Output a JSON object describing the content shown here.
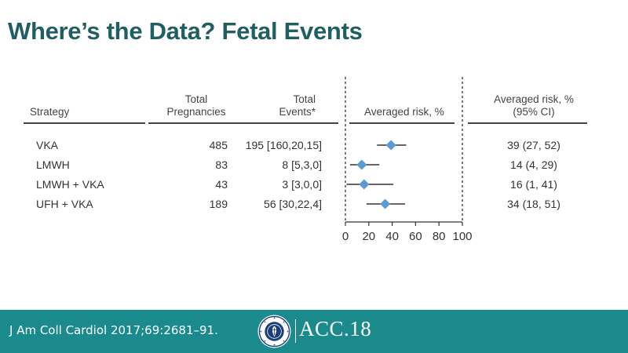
{
  "slide": {
    "title": "Where’s the Data? Fetal Events",
    "citation": "J Am Coll Cardiol 2017;69:2681–91.",
    "logo_text": "ACC.18",
    "seal_text": "AMERICAN COLLEGE OF CARDIOLOGY"
  },
  "table": {
    "headers": {
      "strategy": "Strategy",
      "total_pregnancies": [
        "Total",
        "Pregnancies"
      ],
      "total_events": [
        "Total",
        "Events*"
      ],
      "averaged_risk": "Averaged risk, %",
      "ci": [
        "Averaged risk, %",
        "(95% CI)"
      ]
    },
    "rows": [
      {
        "strategy": "VKA",
        "pregnancies": "485",
        "events": "195 [160,20,15]",
        "risk_ci": "39 (27, 52)"
      },
      {
        "strategy": "LMWH",
        "pregnancies": "83",
        "events": "8 [5,3,0]",
        "risk_ci": "14 (4, 29)"
      },
      {
        "strategy": "LMWH + VKA",
        "pregnancies": "43",
        "events": "3 [3,0,0]",
        "risk_ci": "16 (1, 41)"
      },
      {
        "strategy": "UFH + VKA",
        "pregnancies": "189",
        "events": "56 [30,22,4]",
        "risk_ci": "34 (18, 51)"
      }
    ]
  },
  "chart_data": {
    "type": "forest",
    "xlabel": "Averaged risk, %",
    "xlim": [
      0,
      100
    ],
    "xticks": [
      0,
      20,
      40,
      60,
      80,
      100
    ],
    "categories": [
      "VKA",
      "LMWH",
      "LMWH + VKA",
      "UFH + VKA"
    ],
    "estimates": [
      39,
      14,
      16,
      34
    ],
    "ci_low": [
      27,
      4,
      1,
      18
    ],
    "ci_high": [
      52,
      29,
      41,
      51
    ],
    "marker_color": "#5b9bd5",
    "line_color": "#333333"
  },
  "colors": {
    "title": "#1f5f63",
    "footer": "#1a8a8c"
  }
}
